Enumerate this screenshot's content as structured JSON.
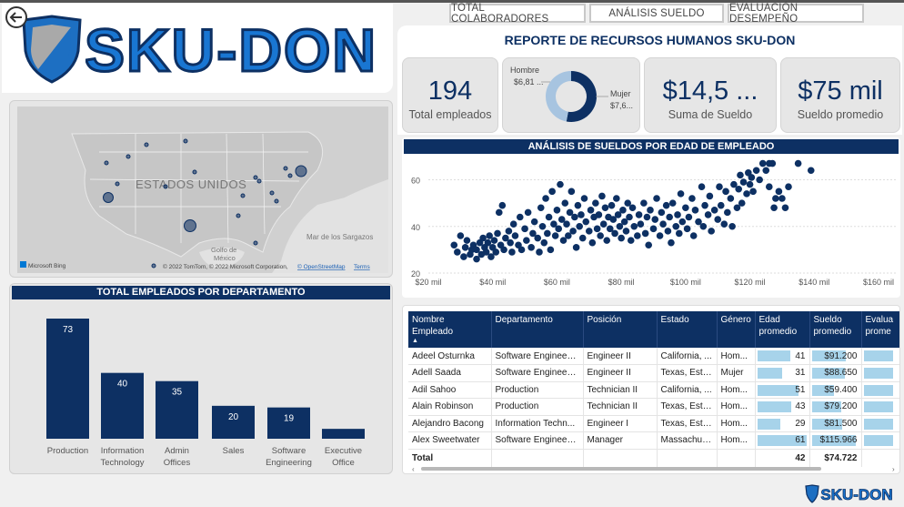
{
  "nav": {
    "tabs": [
      "TOTAL COLABORADORES",
      "ANÁLISIS SUELDO",
      "EVALUACIÓN DESEMPEÑO"
    ]
  },
  "brand": {
    "logo_text": "SKU-DON",
    "footer_logo_text": "SKU-DON"
  },
  "report": {
    "title": "REPORTE DE RECURSOS HUMANOS SKU-DON"
  },
  "kpis": {
    "total_empleados": {
      "value": "194",
      "label": "Total empleados"
    },
    "suma_sueldo": {
      "value": "$14,5 ...",
      "label": "Suma de Sueldo"
    },
    "sueldo_promedio": {
      "value": "$75 mil",
      "label": "Sueldo promedio"
    }
  },
  "gender_donut": {
    "hombre_label": "Hombre",
    "hombre_value": "$6,81 ...",
    "mujer_label": "Mujer",
    "mujer_value": "$7,6...",
    "hombre_fraction": 0.47,
    "colors": {
      "hombre": "#a7c4e0",
      "mujer": "#0d3063"
    }
  },
  "map": {
    "country_label": "ESTADOS UNIDOS",
    "sea_label": "Mar de los Sargazos",
    "gulf_label_1": "Golfo de",
    "gulf_label_2": "México",
    "bing_label": "Microsoft Bing",
    "copyright": "© 2022 TomTom, © 2022 Microsoft Corporation,",
    "osm_link": "© OpenStreetMap",
    "terms_link": "Terms"
  },
  "colors": {
    "navy": "#0d3063",
    "brand_blue": "#1976d2",
    "bar_light": "#a7d3ea"
  },
  "chart_data": [
    {
      "type": "bar",
      "title": "TOTAL EMPLEADOS POR DEPARTAMENTO",
      "categories": [
        "Production",
        "Information Technology",
        "Admin Offices",
        "Sales",
        "Software Engineering",
        "Executive Office"
      ],
      "category_lines": [
        [
          "Production"
        ],
        [
          "Information",
          "Technology"
        ],
        [
          "Admin",
          "Offices"
        ],
        [
          "Sales"
        ],
        [
          "Software",
          "Engineering"
        ],
        [
          "Executive",
          "Office"
        ]
      ],
      "values": [
        73,
        40,
        35,
        20,
        19,
        6
      ],
      "value_labels": [
        "73",
        "40",
        "35",
        "20",
        "19",
        ""
      ],
      "ylim": [
        0,
        73
      ]
    },
    {
      "type": "scatter",
      "title": "ANÁLISIS DE SUELDOS POR EDAD DE EMPLEADO",
      "x_ticks": [
        "$20 mil",
        "$40 mil",
        "$60 mil",
        "$80 mil",
        "$100 mil",
        "$120 mil",
        "$140 mil",
        "$160 mil"
      ],
      "x_tick_values": [
        20000,
        40000,
        60000,
        80000,
        100000,
        120000,
        140000,
        160000
      ],
      "y_ticks": [
        "20",
        "40",
        "60"
      ],
      "y_tick_values": [
        20,
        40,
        60
      ],
      "xlim": [
        20000,
        160000
      ],
      "ylim": [
        20,
        68
      ],
      "points": [
        [
          28000,
          32
        ],
        [
          29000,
          29
        ],
        [
          30000,
          36
        ],
        [
          31000,
          27
        ],
        [
          31500,
          31
        ],
        [
          32000,
          34
        ],
        [
          33000,
          28
        ],
        [
          33500,
          30
        ],
        [
          34000,
          32
        ],
        [
          35000,
          26
        ],
        [
          35000,
          30
        ],
        [
          36000,
          33
        ],
        [
          36500,
          28
        ],
        [
          37000,
          35
        ],
        [
          37500,
          31
        ],
        [
          38000,
          29
        ],
        [
          38500,
          33
        ],
        [
          39000,
          36
        ],
        [
          39500,
          27
        ],
        [
          40000,
          31
        ],
        [
          40500,
          34
        ],
        [
          41000,
          29
        ],
        [
          41500,
          37
        ],
        [
          42000,
          46
        ],
        [
          42500,
          32
        ],
        [
          43000,
          49
        ],
        [
          43500,
          30
        ],
        [
          44000,
          35
        ],
        [
          45000,
          38
        ],
        [
          45500,
          33
        ],
        [
          46000,
          29
        ],
        [
          46500,
          41
        ],
        [
          47000,
          36
        ],
        [
          48000,
          32
        ],
        [
          48500,
          44
        ],
        [
          49000,
          30
        ],
        [
          50000,
          39
        ],
        [
          50500,
          34
        ],
        [
          51000,
          46
        ],
        [
          52000,
          31
        ],
        [
          52500,
          37
        ],
        [
          53000,
          42
        ],
        [
          54000,
          35
        ],
        [
          54500,
          29
        ],
        [
          55000,
          48
        ],
        [
          55500,
          40
        ],
        [
          56000,
          33
        ],
        [
          56500,
          52
        ],
        [
          57000,
          37
        ],
        [
          57500,
          44
        ],
        [
          58000,
          30
        ],
        [
          58500,
          55
        ],
        [
          59000,
          41
        ],
        [
          59500,
          36
        ],
        [
          60000,
          47
        ],
        [
          60500,
          39
        ],
        [
          61000,
          58
        ],
        [
          61500,
          43
        ],
        [
          62000,
          34
        ],
        [
          62500,
          50
        ],
        [
          63000,
          41
        ],
        [
          63500,
          36
        ],
        [
          64000,
          46
        ],
        [
          64500,
          55
        ],
        [
          65000,
          38
        ],
        [
          65500,
          44
        ],
        [
          66000,
          31
        ],
        [
          66500,
          49
        ],
        [
          67000,
          40
        ],
        [
          67500,
          45
        ],
        [
          68000,
          35
        ],
        [
          68500,
          52
        ],
        [
          69000,
          42
        ],
        [
          70000,
          38
        ],
        [
          70500,
          47
        ],
        [
          71000,
          33
        ],
        [
          71500,
          44
        ],
        [
          72000,
          50
        ],
        [
          72500,
          39
        ],
        [
          73000,
          45
        ],
        [
          73500,
          36
        ],
        [
          74000,
          53
        ],
        [
          74500,
          41
        ],
        [
          75000,
          48
        ],
        [
          75500,
          34
        ],
        [
          76000,
          44
        ],
        [
          76500,
          39
        ],
        [
          77000,
          49
        ],
        [
          77500,
          43
        ],
        [
          78000,
          37
        ],
        [
          78500,
          52
        ],
        [
          79000,
          45
        ],
        [
          79500,
          40
        ],
        [
          80000,
          35
        ],
        [
          80500,
          47
        ],
        [
          81000,
          42
        ],
        [
          81500,
          38
        ],
        [
          82000,
          50
        ],
        [
          82500,
          44
        ],
        [
          83000,
          34
        ],
        [
          83500,
          48
        ],
        [
          84000,
          40
        ],
        [
          85000,
          36
        ],
        [
          85500,
          45
        ],
        [
          86000,
          41
        ],
        [
          87000,
          50
        ],
        [
          87500,
          37
        ],
        [
          88000,
          44
        ],
        [
          88500,
          32
        ],
        [
          89000,
          47
        ],
        [
          90000,
          39
        ],
        [
          90500,
          43
        ],
        [
          91000,
          52
        ],
        [
          92000,
          36
        ],
        [
          92500,
          46
        ],
        [
          93000,
          41
        ],
        [
          94000,
          49
        ],
        [
          94500,
          38
        ],
        [
          95000,
          44
        ],
        [
          95500,
          33
        ],
        [
          96000,
          50
        ],
        [
          97000,
          40
        ],
        [
          97500,
          45
        ],
        [
          98000,
          37
        ],
        [
          98500,
          54
        ],
        [
          99000,
          42
        ],
        [
          100000,
          48
        ],
        [
          100500,
          39
        ],
        [
          101000,
          44
        ],
        [
          102000,
          52
        ],
        [
          102500,
          36
        ],
        [
          103000,
          47
        ],
        [
          104000,
          42
        ],
        [
          105000,
          57
        ],
        [
          105500,
          40
        ],
        [
          106000,
          49
        ],
        [
          107000,
          45
        ],
        [
          107500,
          53
        ],
        [
          108000,
          38
        ],
        [
          109000,
          47
        ],
        [
          110000,
          43
        ],
        [
          110500,
          57
        ],
        [
          111000,
          49
        ],
        [
          112000,
          41
        ],
        [
          112500,
          55
        ],
        [
          113000,
          46
        ],
        [
          114000,
          52
        ],
        [
          114500,
          40
        ],
        [
          115000,
          58
        ],
        [
          116000,
          48
        ],
        [
          116500,
          56
        ],
        [
          117000,
          62
        ],
        [
          117500,
          50
        ],
        [
          118000,
          59
        ],
        [
          119000,
          54
        ],
        [
          119500,
          63
        ],
        [
          120000,
          58
        ],
        [
          120500,
          61
        ],
        [
          121000,
          55
        ],
        [
          122000,
          64
        ],
        [
          123000,
          60
        ],
        [
          124000,
          67
        ],
        [
          125000,
          64
        ],
        [
          126000,
          67
        ],
        [
          127000,
          67
        ],
        [
          128000,
          52
        ],
        [
          129000,
          55
        ],
        [
          130000,
          52
        ],
        [
          131000,
          48
        ],
        [
          135000,
          67
        ],
        [
          139000,
          64
        ],
        [
          132000,
          57
        ],
        [
          127500,
          48
        ],
        [
          126000,
          57
        ]
      ]
    }
  ],
  "table": {
    "columns": [
      "Nombre Empleado",
      "Departamento",
      "Posición",
      "Estado",
      "Género",
      "Edad promedio",
      "Sueldo promedio",
      "Evaluación promedio"
    ],
    "column_lines": [
      [
        "Nombre",
        "Empleado"
      ],
      [
        "Departamento"
      ],
      [
        "Posición"
      ],
      [
        "Estado"
      ],
      [
        "Género"
      ],
      [
        "Edad",
        "promedio"
      ],
      [
        "Sueldo",
        "promedio"
      ],
      [
        "Evalua",
        "prome"
      ]
    ],
    "sort_indicator": "▲",
    "rows": [
      [
        "Adeel Osturnka",
        "Software Engineeri...",
        "Engineer II",
        "California, ...",
        "Hom...",
        "41",
        "$91.200"
      ],
      [
        "Adell Saada",
        "Software Engineeri...",
        "Engineer II",
        "Texas, Esta...",
        "Mujer",
        "31",
        "$88.650"
      ],
      [
        "Adil Sahoo",
        "Production",
        "Technician II",
        "California, ...",
        "Hom...",
        "51",
        "$59.400"
      ],
      [
        "Alain Robinson",
        "Production",
        "Technician II",
        "Texas, Esta...",
        "Hom...",
        "43",
        "$79.200"
      ],
      [
        "Alejandro Bacong",
        "Information Techn...",
        "Engineer I",
        "Texas, Esta...",
        "Hom...",
        "29",
        "$81.500"
      ],
      [
        "Alex Sweetwater",
        "Software Engineeri...",
        "Manager",
        "Massachus...",
        "Hom...",
        "61",
        "$115.966"
      ]
    ],
    "age_fractions": [
      0.67,
      0.51,
      0.84,
      0.7,
      0.48,
      1.0
    ],
    "salary_fractions": [
      0.78,
      0.76,
      0.51,
      0.68,
      0.7,
      1.0
    ],
    "total_label": "Total",
    "total_age": "42",
    "total_salary": "$74.722"
  }
}
